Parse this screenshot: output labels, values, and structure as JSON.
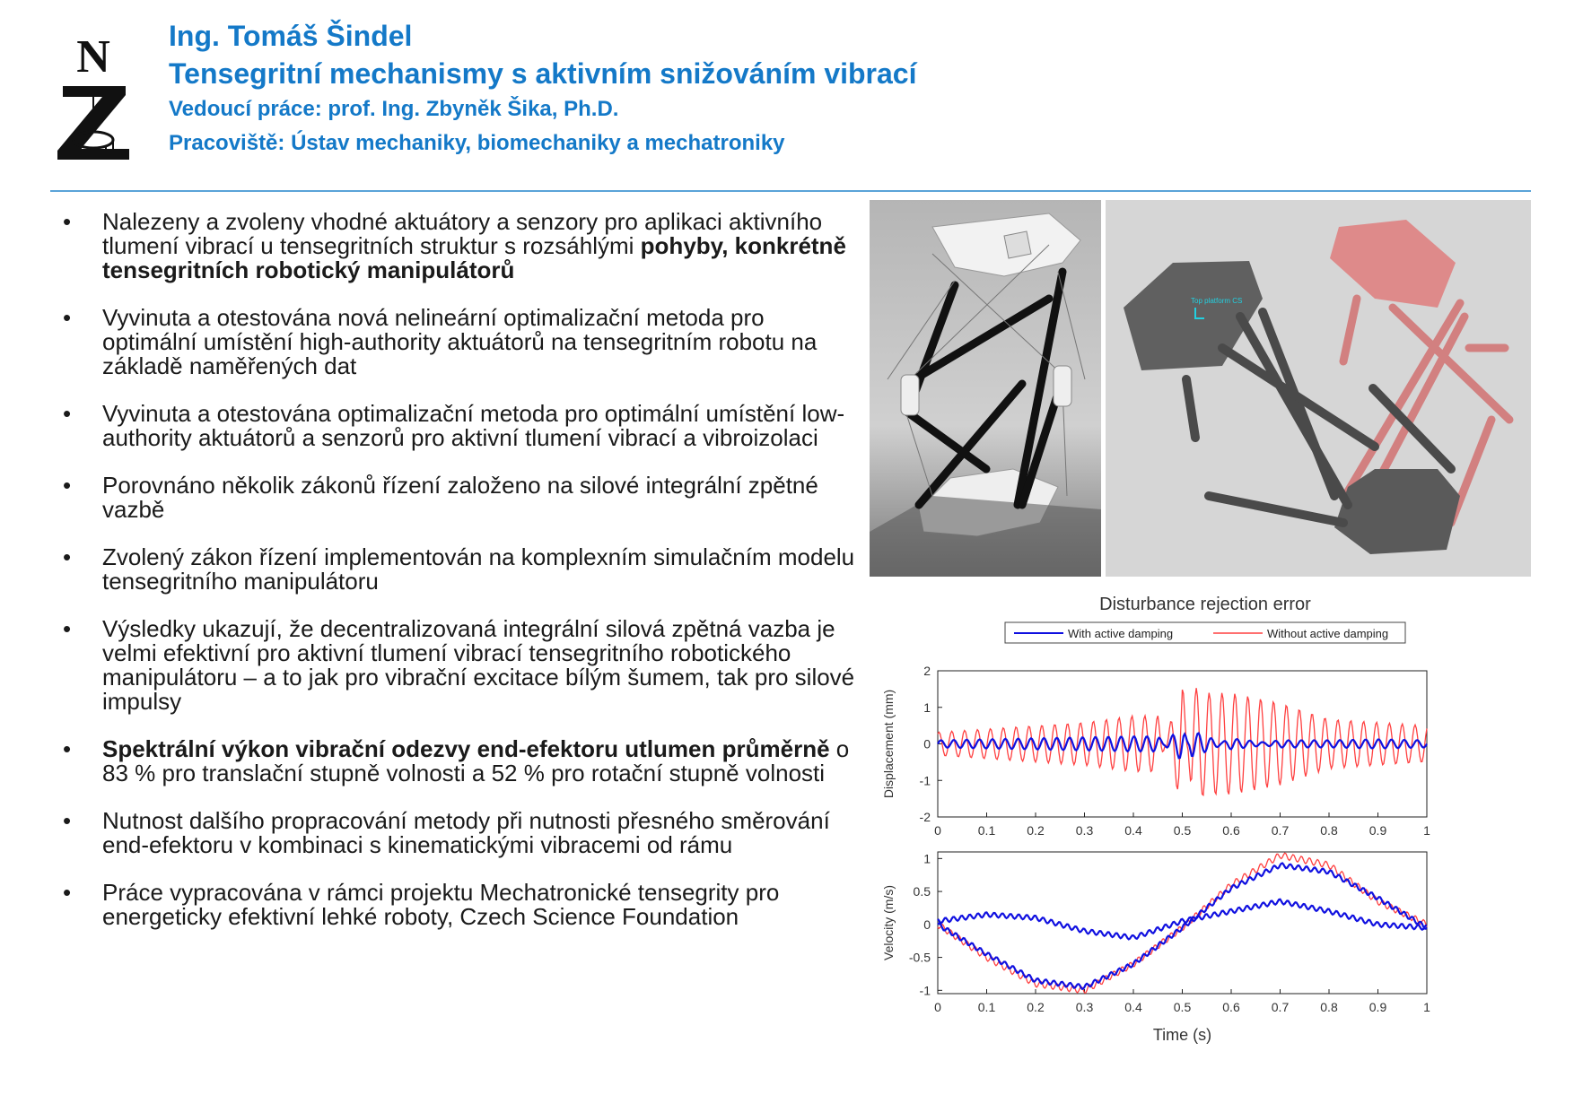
{
  "header": {
    "author": "Ing. Tomáš Šindel",
    "title": "Tensegritní mechanismy s aktivním snižováním vibrací",
    "supervisor": "Vedoucí práce:  prof. Ing. Zbyněk Šika, Ph.D.",
    "department": "Pracoviště: Ústav mechaniky, biomechaniky a mechatroniky"
  },
  "bullets": [
    {
      "text": "Nalezeny a zvoleny vhodné aktuátory a senzory pro aplikaci aktivního tlumení vibrací u tensegritních struktur s rozsáhlými ",
      "bold": "pohyby, konkrétně tensegritních robotický manipulátorů"
    },
    {
      "text": "Vyvinuta a otestována nová nelineární optimalizační metoda pro optimální umístění high-authority aktuátorů na tensegritním robotu na základě naměřených dat"
    },
    {
      "text": "Vyvinuta a otestována optimalizační metoda pro optimální umístění low-authority aktuátorů a senzorů pro aktivní tlumení vibrací a vibroizolaci"
    },
    {
      "text": "Porovnáno několik zákonů řízení založeno na silové integrální zpětné vazbě"
    },
    {
      "text": "Zvolený zákon řízení implementován na komplexním simulačním modelu tensegritního manipulátoru"
    },
    {
      "text": "Výsledky ukazují, že decentralizovaná integrální silová zpětná vazba je velmi efektivní pro aktivní tlumení vibrací tensegritního robotického manipulátoru – a to jak pro vibrační excitace bílým šumem, tak pro silové impulsy"
    },
    {
      "bold": "Spektrální výkon vibrační odezvy end-efektoru utlumen průměrně",
      "text": " o 83 % pro translační stupně volnosti a 52 % pro rotační stupně volnosti"
    },
    {
      "text": "Nutnost dalšího propracování metody při nutnosti přesného směrování end-efektoru v kombinaci s kinematickými vibracemi od rámu"
    },
    {
      "text": "Práce vypracována v rámci projektu Mechatronické tensegrity pro energeticky efektivní lehké roboty, Czech Science Foundation"
    }
  ],
  "bullet_glyph": "•",
  "render_label": "Top platform CS",
  "chart_data": [
    {
      "type": "line",
      "title": "Disturbance rejection error",
      "legend": [
        "With active damping",
        "Without active damping"
      ],
      "legend_placement": "top",
      "xlabel": "",
      "ylabel": "Displacement (mm)",
      "xlim": [
        0,
        1
      ],
      "ylim": [
        -2,
        2
      ],
      "xticks": [
        "0",
        "0.1",
        "0.2",
        "0.3",
        "0.4",
        "0.5",
        "0.6",
        "0.7",
        "0.8",
        "0.9",
        "1"
      ],
      "yticks": [
        "2",
        "1",
        "0",
        "-1",
        "-2"
      ],
      "series": [
        {
          "name": "With active damping",
          "color": "#1010e0",
          "x": [
            0,
            0.1,
            0.2,
            0.3,
            0.4,
            0.45,
            0.5,
            0.52,
            0.55,
            0.6,
            0.7,
            0.8,
            0.9,
            1
          ],
          "y": [
            0.1,
            0.15,
            0.2,
            0.25,
            0.3,
            0.3,
            -0.8,
            0.6,
            0.3,
            -0.2,
            0.1,
            0.1,
            0.15,
            0.1
          ]
        },
        {
          "name": "Without active damping",
          "color": "#ff4040",
          "x": [
            0,
            0.1,
            0.2,
            0.3,
            0.4,
            0.45,
            0.5,
            0.52,
            0.55,
            0.6,
            0.7,
            0.8,
            0.9,
            1
          ],
          "y": [
            0.3,
            0.4,
            0.5,
            0.6,
            0.8,
            0.8,
            -1.9,
            1.7,
            1.5,
            1.5,
            1.2,
            0.7,
            0.6,
            0.5
          ]
        }
      ]
    },
    {
      "type": "line",
      "xlabel": "Time (s)",
      "ylabel": "Velocity (m/s)",
      "xlim": [
        0,
        1
      ],
      "ylim": [
        -1.05,
        1.1
      ],
      "xticks": [
        "0",
        "0.1",
        "0.2",
        "0.3",
        "0.4",
        "0.5",
        "0.6",
        "0.7",
        "0.8",
        "0.9",
        "1"
      ],
      "yticks": [
        "1",
        "0.5",
        "0",
        "-0.5",
        "-1"
      ],
      "series": [
        {
          "name": "With active damping",
          "color": "#1010e0",
          "x": [
            0,
            0.1,
            0.2,
            0.3,
            0.4,
            0.5,
            0.6,
            0.7,
            0.8,
            0.9,
            1
          ],
          "y": [
            0,
            -0.45,
            -0.85,
            -0.95,
            -0.6,
            -0.05,
            0.55,
            0.9,
            0.8,
            0.4,
            -0.05
          ]
        },
        {
          "name": "With active damping",
          "color": "#1010e0",
          "x": [
            0,
            0.1,
            0.2,
            0.3,
            0.4,
            0.5,
            0.6,
            0.7,
            0.8,
            0.9,
            1
          ],
          "y": [
            0.05,
            0.15,
            0.1,
            -0.1,
            -0.2,
            0.05,
            0.2,
            0.35,
            0.2,
            0.0,
            -0.05
          ]
        },
        {
          "name": "Without active damping",
          "color": "#ff4040",
          "x": [
            0,
            0.1,
            0.2,
            0.3,
            0.4,
            0.5,
            0.6,
            0.7,
            0.8,
            0.9,
            1
          ],
          "y": [
            0,
            -0.5,
            -0.9,
            -1.0,
            -0.6,
            -0.05,
            0.6,
            1.05,
            0.9,
            0.35,
            0.0
          ]
        }
      ]
    }
  ]
}
